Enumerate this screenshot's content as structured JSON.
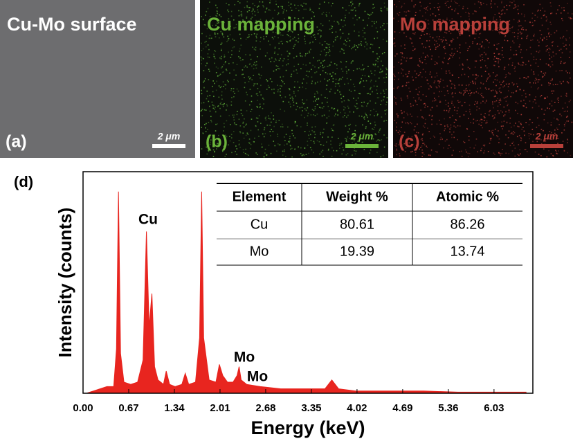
{
  "panels": [
    {
      "title": "Cu-Mo surface",
      "label": "(a)",
      "scale": "2 μm",
      "color": "#ffffff"
    },
    {
      "title": "Cu mapping",
      "label": "(b)",
      "scale": "2 μm",
      "color": "#6bb33a"
    },
    {
      "title": "Mo mapping",
      "label": "(c)",
      "scale": "2 μm",
      "color": "#b8403a"
    }
  ],
  "chart_data": {
    "type": "area",
    "panel_label": "(d)",
    "x_label": "Energy (keV)",
    "y_label": "Intensity (counts)",
    "xlim": [
      0,
      6.6
    ],
    "ylim": [
      0,
      100
    ],
    "xticks": [
      {
        "value": 0,
        "label": "0.00"
      },
      0.67,
      1.34,
      2.01,
      2.68,
      3.35,
      4.02,
      4.69,
      5.36,
      6.03
    ],
    "annotations": [
      "Cu",
      "Mo",
      "Mo"
    ],
    "series": [
      {
        "color": "#e8251f",
        "x": [
          0.05,
          0.15,
          0.25,
          0.35,
          0.45,
          0.49,
          0.52,
          0.55,
          0.6,
          0.7,
          0.8,
          0.88,
          0.93,
          0.97,
          1.01,
          1.05,
          1.1,
          1.18,
          1.22,
          1.27,
          1.35,
          1.45,
          1.5,
          1.55,
          1.65,
          1.71,
          1.74,
          1.77,
          1.85,
          1.95,
          2.0,
          2.05,
          2.12,
          2.2,
          2.26,
          2.29,
          2.32,
          2.4,
          2.6,
          2.9,
          3.2,
          3.55,
          3.65,
          3.75,
          4.0,
          4.5,
          5.0,
          5.5,
          6.0,
          6.5
        ],
        "values": [
          0,
          1,
          2,
          3,
          3,
          20,
          91,
          18,
          5,
          4,
          5,
          15,
          73,
          30,
          45,
          12,
          6,
          4,
          10,
          4,
          3,
          4,
          9,
          4,
          5,
          25,
          91,
          25,
          6,
          5,
          13,
          8,
          5,
          5,
          8,
          12,
          6,
          4,
          3,
          2,
          2,
          2,
          6,
          2,
          1,
          1,
          1,
          0.5,
          0.5,
          0.5
        ]
      }
    ]
  },
  "table": {
    "header": [
      "Element",
      "Weight %",
      "Atomic %"
    ],
    "rows": [
      [
        "Cu",
        "80.61",
        "86.26"
      ],
      [
        "Mo",
        "19.39",
        "13.74"
      ]
    ]
  }
}
